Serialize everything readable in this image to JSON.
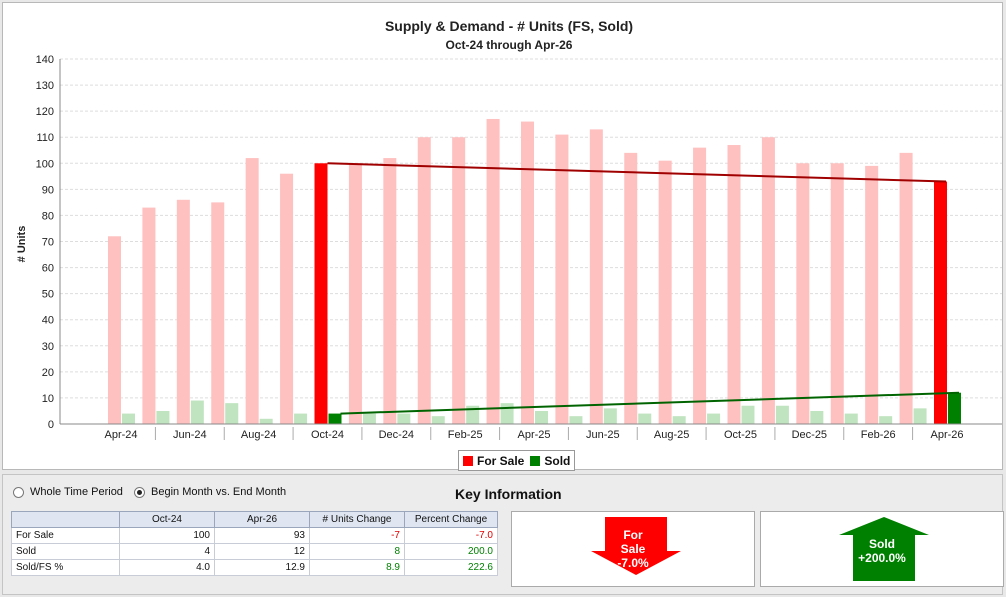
{
  "chart_data": {
    "type": "bar",
    "title": "Supply & Demand - # Units (FS, Sold)",
    "subtitle": "Oct-24 through Apr-26",
    "ylabel": "# Units",
    "ylim": [
      0,
      140
    ],
    "yticks": [
      0,
      10,
      20,
      30,
      40,
      50,
      60,
      70,
      80,
      90,
      100,
      110,
      120,
      130,
      140
    ],
    "categories": [
      "Apr-24",
      "May-24",
      "Jun-24",
      "Jul-24",
      "Aug-24",
      "Sep-24",
      "Oct-24",
      "Nov-24",
      "Dec-24",
      "Jan-25",
      "Feb-25",
      "Mar-25",
      "Apr-25",
      "May-25",
      "Jun-25",
      "Jul-25",
      "Aug-25",
      "Sep-25",
      "Oct-25",
      "Nov-25",
      "Dec-25",
      "Jan-26",
      "Feb-26",
      "Mar-26",
      "Apr-26"
    ],
    "xtick_labels": [
      "Apr-24",
      "Jun-24",
      "Aug-24",
      "Oct-24",
      "Dec-24",
      "Feb-25",
      "Apr-25",
      "Jun-25",
      "Aug-25",
      "Oct-25",
      "Dec-25",
      "Feb-26",
      "Apr-26"
    ],
    "series": [
      {
        "name": "For Sale",
        "color": "#ff0000",
        "faded_color": "#ffc0c0",
        "values": [
          72,
          83,
          86,
          85,
          102,
          96,
          100,
          100,
          102,
          110,
          110,
          117,
          116,
          111,
          113,
          104,
          101,
          106,
          107,
          110,
          100,
          100,
          99,
          104,
          93
        ]
      },
      {
        "name": "Sold",
        "color": "#008000",
        "faded_color": "#c0e4c0",
        "values": [
          4,
          5,
          9,
          8,
          2,
          4,
          4,
          4,
          4,
          3,
          7,
          8,
          5,
          3,
          6,
          4,
          3,
          4,
          7,
          7,
          5,
          4,
          3,
          6,
          12
        ]
      }
    ],
    "highlighted_categories": [
      "Oct-24",
      "Apr-26"
    ],
    "trend_lines": [
      {
        "series": "For Sale",
        "from": 100,
        "to": 93,
        "color": "#a00000"
      },
      {
        "series": "Sold",
        "from": 4,
        "to": 12,
        "color": "#006400"
      }
    ],
    "grid": true,
    "legend": "bottom-center"
  },
  "legend": [
    {
      "label": "For Sale",
      "color": "#ff0000"
    },
    {
      "label": "Sold",
      "color": "#008000"
    }
  ],
  "controls": {
    "whole_period_label": "Whole Time Period",
    "begin_end_label": "Begin Month vs. End Month",
    "selected": "Begin Month vs. End Month"
  },
  "key_info": {
    "title": "Key Information",
    "headers": [
      "",
      "Oct-24",
      "Apr-26",
      "# Units Change",
      "Percent Change"
    ],
    "rows": [
      {
        "label": "For Sale",
        "begin": "100",
        "end": "93",
        "change": "-7",
        "pct": "-7.0",
        "dir": "neg"
      },
      {
        "label": "Sold",
        "begin": "4",
        "end": "12",
        "change": "8",
        "pct": "200.0",
        "dir": "pos"
      },
      {
        "label": "Sold/FS %",
        "begin": "4.0",
        "end": "12.9",
        "change": "8.9",
        "pct": "222.6",
        "dir": "pos"
      }
    ],
    "for_sale_card": {
      "line1": "For",
      "line2": "Sale",
      "line3": "-7.0%",
      "color": "#ff0000"
    },
    "sold_card": {
      "line1": "Sold",
      "line2": "+200.0%",
      "color": "#008000"
    }
  }
}
